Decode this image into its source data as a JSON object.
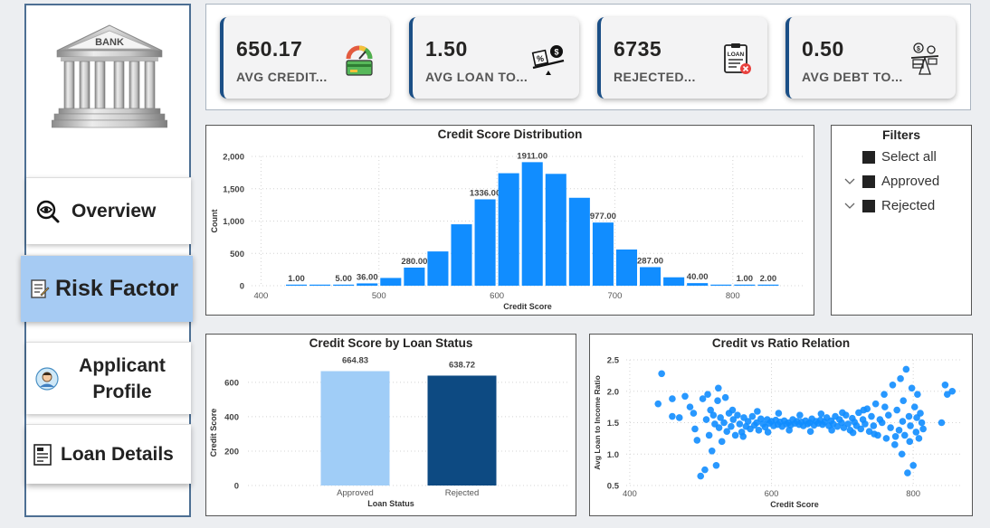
{
  "sidebar": {
    "logo_text": "BANK",
    "nav": [
      {
        "label": "Overview",
        "icon": "eye-search-icon",
        "active": false
      },
      {
        "label": "Risk Factor",
        "icon": "risk-document-icon",
        "active": true
      },
      {
        "label": "Applicant Profile",
        "icon": "applicant-avatar-icon",
        "active": false
      },
      {
        "label": "Loan Details",
        "icon": "loan-form-icon",
        "active": false
      }
    ],
    "active_color": "#a6cbf3"
  },
  "kpis": [
    {
      "value": "650.17",
      "label": "AVG CREDIT...",
      "icon": "credit-gauge-icon"
    },
    {
      "value": "1.50",
      "label": "AVG LOAN TO...",
      "icon": "loan-ratio-icon"
    },
    {
      "value": "6735",
      "label": "REJECTED...",
      "icon": "loan-rejected-icon"
    },
    {
      "value": "0.50",
      "label": "AVG DEBT TO...",
      "icon": "debt-scale-icon"
    }
  ],
  "filters": {
    "title": "Filters",
    "items": [
      {
        "label": "Select all",
        "expandable": false
      },
      {
        "label": "Approved",
        "expandable": true
      },
      {
        "label": "Rejected",
        "expandable": true
      }
    ]
  },
  "chart_data": [
    {
      "type": "bar",
      "title": "Credit Score Distribution",
      "xlabel": "Credit Score",
      "ylabel": "Count",
      "color": "#118dff",
      "xlim": [
        392,
        860
      ],
      "ylim": [
        0,
        2000
      ],
      "xticks": [
        400,
        500,
        600,
        700,
        800
      ],
      "yticks": [
        0,
        500,
        1000,
        1500,
        2000
      ],
      "ytick_labels": [
        "0",
        "500",
        "1,000",
        "1,500",
        "2,000"
      ],
      "bin_width": 20,
      "bins": [
        {
          "x": 430,
          "value": 1,
          "label": "1.00"
        },
        {
          "x": 450,
          "value": 3,
          "label": ""
        },
        {
          "x": 470,
          "value": 5,
          "label": "5.00"
        },
        {
          "x": 490,
          "value": 36,
          "label": "36.00"
        },
        {
          "x": 510,
          "value": 120,
          "label": ""
        },
        {
          "x": 530,
          "value": 280,
          "label": "280.00"
        },
        {
          "x": 550,
          "value": 530,
          "label": ""
        },
        {
          "x": 570,
          "value": 950,
          "label": ""
        },
        {
          "x": 590,
          "value": 1336,
          "label": "1336.00"
        },
        {
          "x": 610,
          "value": 1740,
          "label": ""
        },
        {
          "x": 630,
          "value": 1911,
          "label": "1911.00"
        },
        {
          "x": 650,
          "value": 1730,
          "label": ""
        },
        {
          "x": 670,
          "value": 1360,
          "label": ""
        },
        {
          "x": 690,
          "value": 977,
          "label": "977.00"
        },
        {
          "x": 710,
          "value": 560,
          "label": ""
        },
        {
          "x": 730,
          "value": 287,
          "label": "287.00"
        },
        {
          "x": 750,
          "value": 130,
          "label": ""
        },
        {
          "x": 770,
          "value": 40,
          "label": "40.00"
        },
        {
          "x": 790,
          "value": 10,
          "label": ""
        },
        {
          "x": 810,
          "value": 1,
          "label": "1.00"
        },
        {
          "x": 830,
          "value": 2,
          "label": "2.00"
        }
      ]
    },
    {
      "type": "bar",
      "title": "Credit Score by Loan Status",
      "xlabel": "Loan Status",
      "ylabel": "Credit Score",
      "categories": [
        "Approved",
        "Rejected"
      ],
      "values": [
        664.83,
        638.72
      ],
      "value_labels": [
        "664.83",
        "638.72"
      ],
      "colors": [
        "#a0cdf7",
        "#0d4a82"
      ],
      "ylim": [
        0,
        720
      ],
      "yticks": [
        0,
        200,
        400,
        600
      ]
    },
    {
      "type": "scatter",
      "title": "Credit vs Ratio Relation",
      "xlabel": "Credit Score",
      "ylabel": "Avg Loan to Income Ratio",
      "color": "#118dff",
      "xlim": [
        395,
        870
      ],
      "ylim": [
        0.5,
        2.5
      ],
      "xticks": [
        400,
        600,
        800
      ],
      "yticks": [
        0.5,
        1.0,
        1.5,
        2.0,
        2.5
      ],
      "ytick_labels": [
        "0.5",
        "1.0",
        "1.5",
        "2.0",
        "2.5"
      ],
      "points": [
        [
          445,
          2.28
        ],
        [
          440,
          1.8
        ],
        [
          460,
          1.6
        ],
        [
          470,
          1.58
        ],
        [
          478,
          1.92
        ],
        [
          485,
          1.75
        ],
        [
          490,
          1.65
        ],
        [
          492,
          1.4
        ],
        [
          495,
          1.22
        ],
        [
          500,
          0.65
        ],
        [
          503,
          1.88
        ],
        [
          506,
          0.75
        ],
        [
          508,
          1.55
        ],
        [
          510,
          1.95
        ],
        [
          512,
          1.3
        ],
        [
          514,
          1.7
        ],
        [
          516,
          1.05
        ],
        [
          518,
          1.62
        ],
        [
          520,
          1.48
        ],
        [
          522,
          0.82
        ],
        [
          524,
          1.85
        ],
        [
          526,
          1.42
        ],
        [
          528,
          1.58
        ],
        [
          530,
          1.2
        ],
        [
          533,
          1.5
        ],
        [
          535,
          1.9
        ],
        [
          537,
          1.36
        ],
        [
          540,
          1.65
        ],
        [
          543,
          1.44
        ],
        [
          546,
          1.55
        ],
        [
          549,
          1.3
        ],
        [
          552,
          1.62
        ],
        [
          555,
          1.48
        ],
        [
          558,
          1.35
        ],
        [
          561,
          1.58
        ],
        [
          564,
          1.44
        ],
        [
          567,
          1.52
        ],
        [
          570,
          1.4
        ],
        [
          573,
          1.6
        ],
        [
          576,
          1.46
        ],
        [
          579,
          1.5
        ],
        [
          582,
          1.38
        ],
        [
          585,
          1.56
        ],
        [
          588,
          1.48
        ],
        [
          591,
          1.43
        ],
        [
          594,
          1.55
        ],
        [
          597,
          1.49
        ],
        [
          600,
          1.52
        ],
        [
          603,
          1.45
        ],
        [
          606,
          1.54
        ],
        [
          609,
          1.47
        ],
        [
          612,
          1.51
        ],
        [
          615,
          1.44
        ],
        [
          618,
          1.53
        ],
        [
          621,
          1.48
        ],
        [
          624,
          1.5
        ],
        [
          627,
          1.46
        ],
        [
          630,
          1.55
        ],
        [
          633,
          1.49
        ],
        [
          636,
          1.52
        ],
        [
          639,
          1.47
        ],
        [
          642,
          1.51
        ],
        [
          645,
          1.45
        ],
        [
          648,
          1.53
        ],
        [
          651,
          1.48
        ],
        [
          654,
          1.5
        ],
        [
          657,
          1.56
        ],
        [
          660,
          1.46
        ],
        [
          663,
          1.52
        ],
        [
          666,
          1.49
        ],
        [
          669,
          1.54
        ],
        [
          672,
          1.47
        ],
        [
          675,
          1.51
        ],
        [
          678,
          1.58
        ],
        [
          681,
          1.45
        ],
        [
          684,
          1.53
        ],
        [
          687,
          1.48
        ],
        [
          690,
          1.6
        ],
        [
          693,
          1.44
        ],
        [
          696,
          1.55
        ],
        [
          699,
          1.5
        ],
        [
          702,
          1.42
        ],
        [
          705,
          1.62
        ],
        [
          708,
          1.48
        ],
        [
          711,
          1.38
        ],
        [
          714,
          1.57
        ],
        [
          717,
          1.51
        ],
        [
          720,
          1.45
        ],
        [
          723,
          1.66
        ],
        [
          726,
          1.4
        ],
        [
          729,
          1.55
        ],
        [
          732,
          1.48
        ],
        [
          735,
          1.72
        ],
        [
          738,
          1.36
        ],
        [
          741,
          1.6
        ],
        [
          744,
          1.45
        ],
        [
          747,
          1.8
        ],
        [
          750,
          1.3
        ],
        [
          753,
          1.55
        ],
        [
          756,
          1.5
        ],
        [
          759,
          1.95
        ],
        [
          762,
          1.25
        ],
        [
          765,
          1.62
        ],
        [
          768,
          1.42
        ],
        [
          771,
          2.1
        ],
        [
          774,
          1.15
        ],
        [
          777,
          1.7
        ],
        [
          780,
          1.38
        ],
        [
          782,
          2.2
        ],
        [
          784,
          1.0
        ],
        [
          786,
          1.85
        ],
        [
          788,
          1.3
        ],
        [
          790,
          2.35
        ],
        [
          792,
          0.7
        ],
        [
          794,
          1.6
        ],
        [
          796,
          1.45
        ],
        [
          798,
          2.05
        ],
        [
          800,
          0.82
        ],
        [
          802,
          1.75
        ],
        [
          804,
          1.35
        ],
        [
          806,
          1.95
        ],
        [
          808,
          1.25
        ],
        [
          810,
          1.65
        ],
        [
          812,
          1.5
        ],
        [
          814,
          1.4
        ],
        [
          840,
          1.5
        ],
        [
          845,
          2.1
        ],
        [
          848,
          1.95
        ],
        [
          855,
          2.0
        ],
        [
          460,
          1.88
        ],
        [
          525,
          2.05
        ],
        [
          545,
          1.7
        ],
        [
          560,
          1.28
        ],
        [
          580,
          1.68
        ],
        [
          595,
          1.35
        ],
        [
          610,
          1.65
        ],
        [
          625,
          1.38
        ],
        [
          640,
          1.62
        ],
        [
          655,
          1.36
        ],
        [
          670,
          1.64
        ],
        [
          685,
          1.38
        ],
        [
          700,
          1.66
        ],
        [
          715,
          1.34
        ],
        [
          730,
          1.7
        ],
        [
          745,
          1.32
        ],
        [
          760,
          1.75
        ],
        [
          775,
          1.28
        ],
        [
          785,
          1.52
        ],
        [
          795,
          1.2
        ],
        [
          805,
          1.58
        ]
      ]
    }
  ]
}
